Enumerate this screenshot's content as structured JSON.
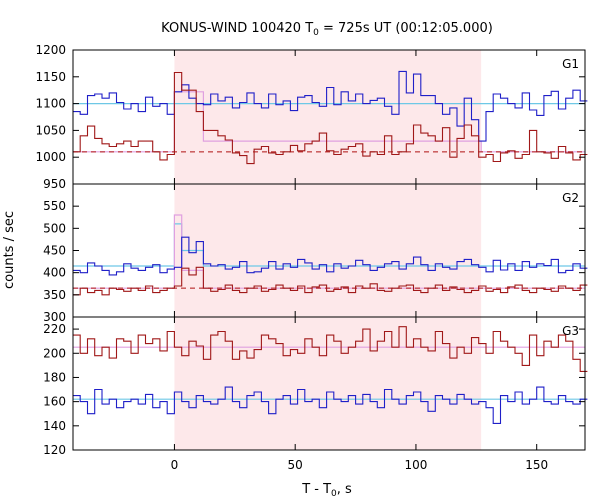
{
  "chart_data": {
    "type": "line",
    "title": "KONUS-WIND 100420 T",
    "title_sub": "0",
    "title_rest": " = 725s UT (00:12:05.000)",
    "xlabel": "T - T",
    "xlabel_sub": "0",
    "xlabel_rest": ", s",
    "ylabel": "counts / sec",
    "xlim": [
      -42,
      170
    ],
    "xticks": [
      0,
      50,
      100,
      150
    ],
    "highlight": [
      0,
      127
    ],
    "x": [
      -42,
      -39,
      -36,
      -33,
      -30,
      -27,
      -24,
      -21,
      -18,
      -15,
      -12,
      -9,
      -6,
      -3,
      0,
      3,
      6,
      9,
      12,
      15,
      18,
      21,
      24,
      27,
      30,
      33,
      36,
      39,
      42,
      45,
      48,
      51,
      54,
      57,
      60,
      63,
      66,
      69,
      72,
      75,
      78,
      81,
      84,
      87,
      90,
      93,
      96,
      99,
      102,
      105,
      108,
      111,
      114,
      117,
      120,
      123,
      126,
      129,
      132,
      135,
      138,
      141,
      144,
      147,
      150,
      153,
      156,
      159,
      162,
      165,
      168
    ],
    "panels": [
      {
        "name": "G1",
        "ylim": [
          950,
          1200
        ],
        "yticks": [
          950,
          1000,
          1050,
          1100,
          1150,
          1200
        ],
        "series": [
          {
            "name": "G1 blue",
            "color": "#1f1fc8",
            "values": [
              1085,
              1080,
              1115,
              1118,
              1110,
              1120,
              1102,
              1090,
              1100,
              1085,
              1112,
              1095,
              1100,
              1080,
              1122,
              1135,
              1110,
              1100,
              1098,
              1118,
              1105,
              1112,
              1092,
              1102,
              1120,
              1100,
              1092,
              1118,
              1098,
              1105,
              1087,
              1112,
              1115,
              1102,
              1095,
              1130,
              1098,
              1122,
              1105,
              1118,
              1100,
              1106,
              1110,
              1095,
              1080,
              1160,
              1120,
              1155,
              1115,
              1115,
              1100,
              1080,
              1092,
              1058,
              1110,
              1070,
              1030,
              1085,
              1118,
              1110,
              1100,
              1092,
              1120,
              1088,
              1078,
              1115,
              1123,
              1090,
              1110,
              1125,
              1105
            ]
          },
          {
            "name": "G1 red",
            "color": "#a01818",
            "values": [
              1010,
              1040,
              1058,
              1035,
              1025,
              1020,
              1025,
              1030,
              1020,
              1030,
              1030,
              1010,
              995,
              1005,
              1158,
              1125,
              1125,
              1085,
              1050,
              1050,
              1040,
              1032,
              1008,
              1003,
              988,
              1015,
              1020,
              1008,
              1005,
              1010,
              1022,
              1012,
              1025,
              1030,
              1045,
              1012,
              1005,
              1015,
              1020,
              1025,
              1002,
              1010,
              1005,
              1040,
              1005,
              1010,
              1025,
              1060,
              1045,
              1040,
              1030,
              1055,
              1000,
              1035,
              1060,
              1040,
              1000,
              1005,
              992,
              1008,
              1012,
              998,
              1005,
              1050,
              1010,
              1008,
              998,
              1020,
              1008,
              995,
              1005
            ]
          }
        ],
        "fits": [
          {
            "color": "#6ec8e6",
            "points": [
              [
                -42,
                1100
              ],
              [
                170,
                1100
              ]
            ]
          },
          {
            "color": "#e0a0e0",
            "points": [
              [
                -42,
                1010
              ],
              [
                0,
                1010
              ],
              [
                0,
                1122
              ],
              [
                12,
                1122
              ],
              [
                12,
                1030
              ],
              [
                127,
                1030
              ],
              [
                127,
                1010
              ],
              [
                170,
                1010
              ]
            ]
          }
        ],
        "dashed": [
          {
            "color": "#b01010",
            "y": 1010
          }
        ]
      },
      {
        "name": "G2",
        "ylim": [
          300,
          600
        ],
        "yticks": [
          300,
          350,
          400,
          450,
          500,
          550
        ],
        "series": [
          {
            "name": "G2 blue",
            "color": "#1f1fc8",
            "values": [
              405,
              400,
              422,
              415,
              405,
              395,
              402,
              420,
              410,
              405,
              412,
              418,
              400,
              408,
              412,
              480,
              445,
              470,
              420,
              415,
              418,
              408,
              412,
              425,
              400,
              402,
              410,
              425,
              408,
              420,
              412,
              430,
              422,
              408,
              418,
              402,
              420,
              410,
              415,
              428,
              418,
              405,
              412,
              420,
              425,
              408,
              420,
              435,
              418,
              405,
              420,
              412,
              408,
              425,
              430,
              418,
              412,
              402,
              428,
              406,
              420,
              405,
              425,
              412,
              420,
              416,
              430,
              400,
              405,
              420,
              410
            ]
          },
          {
            "name": "G2 red",
            "color": "#a01818",
            "values": [
              350,
              365,
              355,
              360,
              350,
              365,
              362,
              358,
              365,
              360,
              370,
              355,
              360,
              365,
              370,
              410,
              395,
              412,
              365,
              358,
              362,
              372,
              360,
              355,
              365,
              370,
              358,
              362,
              372,
              365,
              360,
              370,
              355,
              368,
              372,
              358,
              362,
              368,
              355,
              370,
              365,
              375,
              360,
              358,
              365,
              370,
              372,
              360,
              355,
              365,
              372,
              360,
              368,
              362,
              355,
              360,
              370,
              358,
              362,
              355,
              368,
              372,
              360,
              355,
              365,
              362,
              358,
              370,
              365,
              360,
              372
            ]
          }
        ],
        "fits": [
          {
            "color": "#6ec8e6",
            "points": [
              [
                -42,
                415
              ],
              [
                0,
                415
              ],
              [
                0,
                510
              ],
              [
                3,
                510
              ],
              [
                3,
                450
              ],
              [
                12,
                450
              ],
              [
                12,
                415
              ],
              [
                170,
                415
              ]
            ]
          },
          {
            "color": "#e0a0e0",
            "points": [
              [
                -42,
                365
              ],
              [
                0,
                365
              ],
              [
                0,
                530
              ],
              [
                3,
                530
              ],
              [
                3,
                405
              ],
              [
                12,
                405
              ],
              [
                12,
                365
              ],
              [
                170,
                365
              ]
            ]
          }
        ],
        "dashed": [
          {
            "color": "#b01010",
            "y": 365
          }
        ]
      },
      {
        "name": "G3",
        "ylim": [
          120,
          230
        ],
        "yticks": [
          120,
          140,
          160,
          180,
          200,
          220
        ],
        "series": [
          {
            "name": "G3 red",
            "color": "#a01818",
            "values": [
              215,
              200,
              212,
              198,
              205,
              196,
              212,
              210,
              200,
              215,
              208,
              212,
              202,
              218,
              205,
              198,
              210,
              206,
              195,
              215,
              218,
              210,
              195,
              202,
              196,
              203,
              215,
              212,
              208,
              198,
              203,
              200,
              212,
              205,
              198,
              215,
              210,
              200,
              205,
              210,
              220,
              202,
              210,
              218,
              205,
              222,
              205,
              212,
              205,
              202,
              218,
              208,
              196,
              205,
              200,
              213,
              208,
              200,
              218,
              210,
              205,
              200,
              190,
              215,
              198,
              210,
              205,
              215,
              210,
              195,
              185
            ]
          },
          {
            "name": "G3 blue",
            "color": "#1f1fc8",
            "values": [
              165,
              160,
              150,
              170,
              158,
              162,
              155,
              160,
              162,
              158,
              166,
              155,
              160,
              150,
              168,
              160,
              155,
              165,
              160,
              158,
              162,
              172,
              160,
              155,
              165,
              168,
              160,
              150,
              162,
              165,
              158,
              170,
              160,
              162,
              155,
              168,
              162,
              160,
              165,
              158,
              166,
              160,
              155,
              170,
              162,
              158,
              165,
              168,
              160,
              152,
              165,
              162,
              158,
              166,
              162,
              158,
              160,
              155,
              142,
              165,
              160,
              168,
              158,
              162,
              172,
              160,
              158,
              165,
              160,
              158,
              162
            ]
          }
        ],
        "fits": [
          {
            "color": "#e0a0e0",
            "points": [
              [
                -42,
                205
              ],
              [
                170,
                205
              ]
            ]
          },
          {
            "color": "#6ec8e6",
            "points": [
              [
                -42,
                162
              ],
              [
                170,
                162
              ]
            ]
          }
        ],
        "dashed": []
      }
    ]
  }
}
